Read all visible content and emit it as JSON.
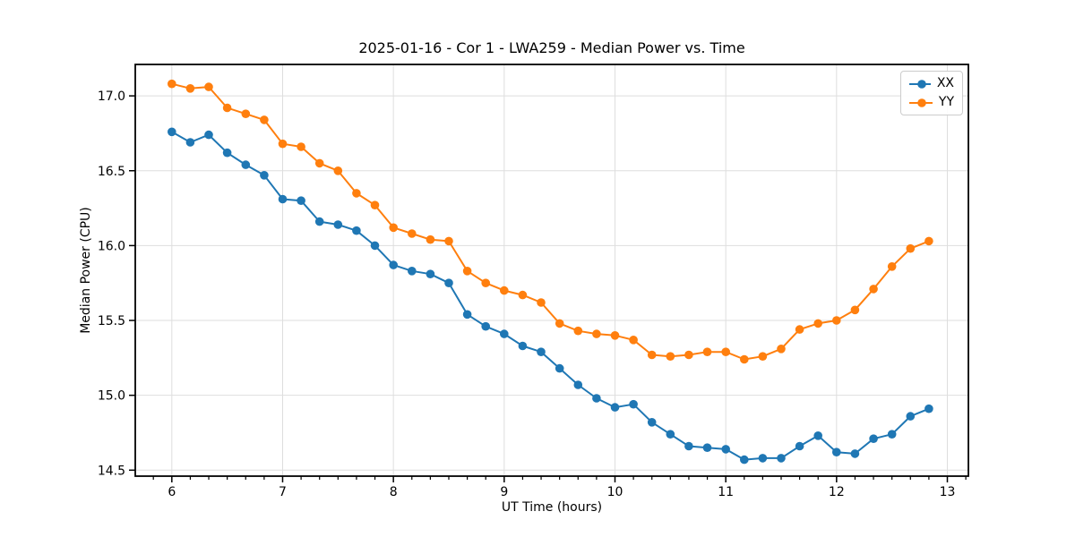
{
  "chart_data": {
    "type": "line",
    "title": "2025-01-16 - Cor 1 - LWA259 - Median Power vs. Time",
    "xlabel": "UT Time (hours)",
    "ylabel": "Median Power (CPU)",
    "legend_position": "upper right",
    "grid": true,
    "marker": "circle",
    "xlim": [
      5.67,
      13.19
    ],
    "ylim": [
      14.46,
      17.21
    ],
    "xticks": [
      6,
      7,
      8,
      9,
      10,
      11,
      12,
      13
    ],
    "xtick_labels": [
      "6",
      "7",
      "8",
      "9",
      "10",
      "11",
      "12",
      "13"
    ],
    "yticks": [
      14.5,
      15.0,
      15.5,
      16.0,
      16.5,
      17.0
    ],
    "ytick_labels": [
      "14.5",
      "15.0",
      "15.5",
      "16.0",
      "16.5",
      "17.0"
    ],
    "x_minor_tick_step": 0.166667,
    "x": [
      6.0,
      6.1667,
      6.3333,
      6.5,
      6.6667,
      6.8333,
      7.0,
      7.1667,
      7.3333,
      7.5,
      7.6667,
      7.8333,
      8.0,
      8.1667,
      8.3333,
      8.5,
      8.6667,
      8.8333,
      9.0,
      9.1667,
      9.3333,
      9.5,
      9.6667,
      9.8333,
      10.0,
      10.1667,
      10.3333,
      10.5,
      10.6667,
      10.8333,
      11.0,
      11.1667,
      11.3333,
      11.5,
      11.6667,
      11.8333,
      12.0,
      12.1667,
      12.3333,
      12.5,
      12.6667,
      12.8333
    ],
    "series": [
      {
        "name": "XX",
        "color": "#1f77b4",
        "values": [
          16.76,
          16.69,
          16.74,
          16.62,
          16.54,
          16.47,
          16.31,
          16.3,
          16.16,
          16.14,
          16.1,
          16.0,
          15.87,
          15.83,
          15.81,
          15.75,
          15.54,
          15.46,
          15.41,
          15.33,
          15.29,
          15.18,
          15.07,
          14.98,
          14.92,
          14.94,
          14.82,
          14.74,
          14.66,
          14.65,
          14.64,
          14.57,
          14.58,
          14.58,
          14.66,
          14.73,
          14.62,
          14.61,
          14.71,
          14.74,
          14.86,
          14.91
        ]
      },
      {
        "name": "YY",
        "color": "#ff7f0e",
        "values": [
          17.08,
          17.05,
          17.06,
          16.92,
          16.88,
          16.84,
          16.68,
          16.66,
          16.55,
          16.5,
          16.35,
          16.27,
          16.12,
          16.08,
          16.04,
          16.03,
          15.83,
          15.75,
          15.7,
          15.67,
          15.62,
          15.48,
          15.43,
          15.41,
          15.4,
          15.37,
          15.27,
          15.26,
          15.27,
          15.29,
          15.29,
          15.24,
          15.26,
          15.31,
          15.44,
          15.48,
          15.5,
          15.57,
          15.71,
          15.86,
          15.98,
          16.03
        ]
      }
    ],
    "style": {
      "grid_color": "#dedede",
      "spine_color": "#000000",
      "background": "#ffffff",
      "line_width": 2,
      "marker_radius": 4.8
    }
  }
}
